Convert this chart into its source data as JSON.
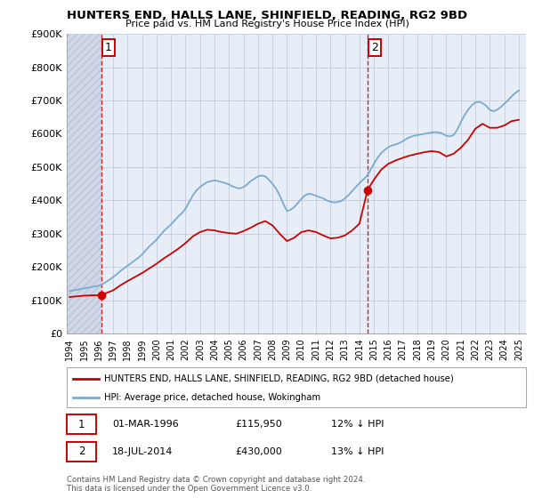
{
  "title": "HUNTERS END, HALLS LANE, SHINFIELD, READING, RG2 9BD",
  "subtitle": "Price paid vs. HM Land Registry's House Price Index (HPI)",
  "ylabel_ticks": [
    "£0",
    "£100K",
    "£200K",
    "£300K",
    "£400K",
    "£500K",
    "£600K",
    "£700K",
    "£800K",
    "£900K"
  ],
  "ytick_vals": [
    0,
    100000,
    200000,
    300000,
    400000,
    500000,
    600000,
    700000,
    800000,
    900000
  ],
  "ylim": [
    0,
    900000
  ],
  "xlim_start": 1993.8,
  "xlim_end": 2025.5,
  "background_color": "#ffffff",
  "plot_bg_color": "#e8eef8",
  "hatch_color": "#d0d8e8",
  "grid_color": "#c8d0de",
  "sale1_x": 1996.17,
  "sale1_y": 115950,
  "sale2_x": 2014.54,
  "sale2_y": 430000,
  "annotation1_label": "1",
  "annotation2_label": "2",
  "legend_line1": "HUNTERS END, HALLS LANE, SHINFIELD, READING, RG2 9BD (detached house)",
  "legend_line2": "HPI: Average price, detached house, Wokingham",
  "table_row1": [
    "1",
    "01-MAR-1996",
    "£115,950",
    "12% ↓ HPI"
  ],
  "table_row2": [
    "2",
    "18-JUL-2014",
    "£430,000",
    "13% ↓ HPI"
  ],
  "footer": "Contains HM Land Registry data © Crown copyright and database right 2024.\nThis data is licensed under the Open Government Licence v3.0.",
  "line_red_color": "#cc0000",
  "line_blue_color": "#7aaad0",
  "dot_color": "#cc0000",
  "vline_color": "#cc0000",
  "hpi_data_x": [
    1994.0,
    1994.25,
    1994.5,
    1994.75,
    1995.0,
    1995.25,
    1995.5,
    1995.75,
    1996.0,
    1996.25,
    1996.5,
    1996.75,
    1997.0,
    1997.25,
    1997.5,
    1997.75,
    1998.0,
    1998.25,
    1998.5,
    1998.75,
    1999.0,
    1999.25,
    1999.5,
    1999.75,
    2000.0,
    2000.25,
    2000.5,
    2000.75,
    2001.0,
    2001.25,
    2001.5,
    2001.75,
    2002.0,
    2002.25,
    2002.5,
    2002.75,
    2003.0,
    2003.25,
    2003.5,
    2003.75,
    2004.0,
    2004.25,
    2004.5,
    2004.75,
    2005.0,
    2005.25,
    2005.5,
    2005.75,
    2006.0,
    2006.25,
    2006.5,
    2006.75,
    2007.0,
    2007.25,
    2007.5,
    2007.75,
    2008.0,
    2008.25,
    2008.5,
    2008.75,
    2009.0,
    2009.25,
    2009.5,
    2009.75,
    2010.0,
    2010.25,
    2010.5,
    2010.75,
    2011.0,
    2011.25,
    2011.5,
    2011.75,
    2012.0,
    2012.25,
    2012.5,
    2012.75,
    2013.0,
    2013.25,
    2013.5,
    2013.75,
    2014.0,
    2014.25,
    2014.5,
    2014.75,
    2015.0,
    2015.25,
    2015.5,
    2015.75,
    2016.0,
    2016.25,
    2016.5,
    2016.75,
    2017.0,
    2017.25,
    2017.5,
    2017.75,
    2018.0,
    2018.25,
    2018.5,
    2018.75,
    2019.0,
    2019.25,
    2019.5,
    2019.75,
    2020.0,
    2020.25,
    2020.5,
    2020.75,
    2021.0,
    2021.25,
    2021.5,
    2021.75,
    2022.0,
    2022.25,
    2022.5,
    2022.75,
    2023.0,
    2023.25,
    2023.5,
    2023.75,
    2024.0,
    2024.25,
    2024.5,
    2024.75,
    2025.0
  ],
  "hpi_data_y": [
    128000,
    130000,
    132000,
    134000,
    136000,
    138000,
    140000,
    142000,
    144000,
    148000,
    155000,
    162000,
    170000,
    178000,
    188000,
    196000,
    204000,
    212000,
    220000,
    228000,
    238000,
    250000,
    262000,
    272000,
    282000,
    295000,
    308000,
    318000,
    328000,
    340000,
    352000,
    362000,
    375000,
    395000,
    415000,
    430000,
    440000,
    448000,
    455000,
    458000,
    460000,
    458000,
    455000,
    452000,
    448000,
    442000,
    438000,
    436000,
    440000,
    448000,
    458000,
    465000,
    472000,
    475000,
    472000,
    462000,
    450000,
    435000,
    415000,
    390000,
    368000,
    372000,
    380000,
    392000,
    405000,
    415000,
    420000,
    418000,
    414000,
    410000,
    406000,
    400000,
    396000,
    394000,
    395000,
    398000,
    406000,
    416000,
    428000,
    440000,
    452000,
    462000,
    472000,
    490000,
    510000,
    528000,
    542000,
    552000,
    560000,
    565000,
    568000,
    572000,
    578000,
    585000,
    590000,
    594000,
    596000,
    598000,
    600000,
    602000,
    604000,
    605000,
    604000,
    600000,
    594000,
    592000,
    596000,
    612000,
    635000,
    655000,
    672000,
    685000,
    694000,
    696000,
    692000,
    684000,
    672000,
    668000,
    672000,
    680000,
    690000,
    700000,
    712000,
    722000,
    730000
  ],
  "red_data_x": [
    1994.0,
    1994.5,
    1995.0,
    1995.5,
    1996.0,
    1996.17,
    1997.0,
    1997.5,
    1998.0,
    1998.5,
    1999.0,
    1999.5,
    2000.0,
    2000.5,
    2001.0,
    2001.5,
    2002.0,
    2002.5,
    2003.0,
    2003.5,
    2004.0,
    2004.5,
    2005.0,
    2005.5,
    2006.0,
    2006.5,
    2007.0,
    2007.5,
    2008.0,
    2008.5,
    2009.0,
    2009.5,
    2010.0,
    2010.5,
    2011.0,
    2011.5,
    2012.0,
    2012.5,
    2013.0,
    2013.5,
    2014.0,
    2014.5,
    2014.54,
    2015.0,
    2015.5,
    2016.0,
    2016.5,
    2017.0,
    2017.5,
    2018.0,
    2018.5,
    2019.0,
    2019.5,
    2020.0,
    2020.5,
    2021.0,
    2021.5,
    2022.0,
    2022.5,
    2023.0,
    2023.5,
    2024.0,
    2024.5,
    2025.0
  ],
  "red_data_y": [
    110000,
    112000,
    114000,
    115000,
    115500,
    115950,
    130000,
    145000,
    158000,
    170000,
    182000,
    196000,
    210000,
    226000,
    240000,
    255000,
    272000,
    292000,
    305000,
    312000,
    310000,
    305000,
    302000,
    300000,
    308000,
    318000,
    330000,
    338000,
    325000,
    300000,
    278000,
    288000,
    305000,
    310000,
    305000,
    295000,
    286000,
    288000,
    295000,
    310000,
    330000,
    420000,
    430000,
    462000,
    492000,
    510000,
    520000,
    528000,
    535000,
    540000,
    545000,
    548000,
    545000,
    532000,
    540000,
    558000,
    582000,
    615000,
    630000,
    618000,
    618000,
    625000,
    638000,
    642000
  ]
}
